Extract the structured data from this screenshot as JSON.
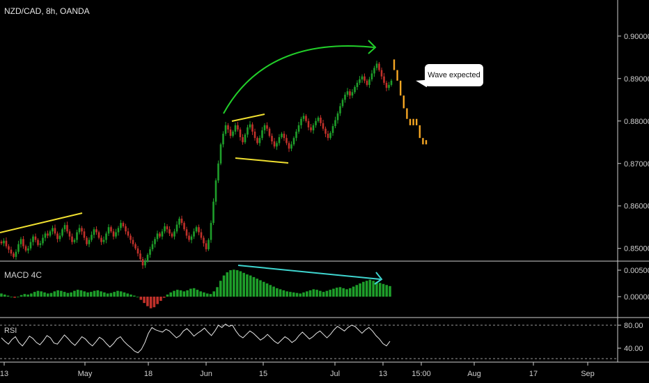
{
  "header": {
    "title": "NZD/CAD, 8h, OANDA"
  },
  "annotations": {
    "callout_text": "Wave expected"
  },
  "panes": {
    "macd_label": "MACD 4C",
    "rsi_label": "RSI"
  },
  "colors": {
    "up": "#1e9e2a",
    "down": "#c0312a",
    "projection": "#f5a623",
    "trend_yellow": "#f0e030",
    "arc_green": "#22d02a",
    "divergence": "#3fd6d0",
    "axis_text": "#cfcfcf"
  },
  "chart_data": [
    {
      "type": "candlestick",
      "series": [
        {
          "name": "price",
          "closes": [
            0.8512,
            0.8518,
            0.8505,
            0.8497,
            0.8488,
            0.848,
            0.8492,
            0.851,
            0.8522,
            0.8505,
            0.8495,
            0.85,
            0.8515,
            0.8528,
            0.852,
            0.8508,
            0.8512,
            0.8525,
            0.8535,
            0.853,
            0.854,
            0.8548,
            0.8535,
            0.8522,
            0.853,
            0.8545,
            0.8555,
            0.854,
            0.8528,
            0.8515,
            0.852,
            0.8538,
            0.8548,
            0.854,
            0.8525,
            0.851,
            0.852,
            0.8532,
            0.8545,
            0.8538,
            0.8525,
            0.8515,
            0.852,
            0.8535,
            0.855,
            0.854,
            0.8528,
            0.8538,
            0.8548,
            0.856,
            0.8552,
            0.854,
            0.853,
            0.852,
            0.851,
            0.85,
            0.8488,
            0.8475,
            0.846,
            0.847,
            0.8485,
            0.8498,
            0.851,
            0.8522,
            0.8535,
            0.8528,
            0.854,
            0.8552,
            0.8545,
            0.8535,
            0.8528,
            0.854,
            0.8556,
            0.857,
            0.856,
            0.8545,
            0.853,
            0.852,
            0.8528,
            0.854,
            0.855,
            0.8538,
            0.8525,
            0.8512,
            0.8498,
            0.852,
            0.856,
            0.861,
            0.866,
            0.87,
            0.8745,
            0.877,
            0.879,
            0.878,
            0.8765,
            0.8775,
            0.879,
            0.878,
            0.8762,
            0.875,
            0.8768,
            0.8785,
            0.8792,
            0.8775,
            0.876,
            0.8748,
            0.876,
            0.8778,
            0.879,
            0.8782,
            0.8765,
            0.8752,
            0.874,
            0.8748,
            0.8762,
            0.877,
            0.876,
            0.8748,
            0.8735,
            0.8745,
            0.876,
            0.8775,
            0.879,
            0.8805,
            0.8812,
            0.88,
            0.8785,
            0.8778,
            0.879,
            0.88,
            0.8808,
            0.8795,
            0.8782,
            0.877,
            0.876,
            0.8772,
            0.8788,
            0.8802,
            0.8818,
            0.8835,
            0.885,
            0.8862,
            0.887,
            0.886,
            0.8868,
            0.888,
            0.889,
            0.8898,
            0.8905,
            0.8895,
            0.8885,
            0.8898,
            0.8912,
            0.8925,
            0.8935,
            0.892,
            0.8905,
            0.889,
            0.8878,
            0.8885,
            0.8895
          ]
        }
      ],
      "projection": [
        0.892,
        0.8895,
        0.886,
        0.883,
        0.8805,
        0.879,
        0.8805,
        0.879,
        0.876,
        0.8745,
        0.8755
      ],
      "ylim": [
        0.847,
        0.9085
      ],
      "y_ticks": [
        "0.90000",
        "0.89000",
        "0.88000",
        "0.87000",
        "0.86000",
        "0.85000"
      ],
      "x_ticks": [
        "13",
        "May",
        "18",
        "Jun",
        "15",
        "Jul",
        "13",
        "15:00",
        "Aug",
        "17",
        "Sep"
      ]
    },
    {
      "type": "bar",
      "series": [
        {
          "name": "MACD 4C",
          "values": [
            0.0006,
            0.0004,
            0.0002,
            0.0,
            -0.0002,
            0.0,
            0.0003,
            0.0005,
            0.0004,
            0.0006,
            0.0009,
            0.0011,
            0.001,
            0.0008,
            0.0006,
            0.0007,
            0.001,
            0.0012,
            0.0011,
            0.0009,
            0.0007,
            0.0008,
            0.0011,
            0.0013,
            0.0012,
            0.001,
            0.0008,
            0.0009,
            0.0011,
            0.0012,
            0.001,
            0.0008,
            0.0006,
            0.0007,
            0.0009,
            0.0011,
            0.001,
            0.0008,
            0.0006,
            0.0004,
            0.0002,
            0.0,
            -0.0006,
            -0.0012,
            -0.0018,
            -0.0022,
            -0.002,
            -0.0014,
            -0.0008,
            -0.0002,
            0.0004,
            0.0008,
            0.0011,
            0.0013,
            0.0012,
            0.001,
            0.0012,
            0.0015,
            0.0016,
            0.0013,
            0.001,
            0.0008,
            0.0006,
            0.0005,
            0.001,
            0.0018,
            0.003,
            0.004,
            0.0046,
            0.005,
            0.0051,
            0.005,
            0.0048,
            0.0045,
            0.0042,
            0.004,
            0.0037,
            0.0034,
            0.0031,
            0.0028,
            0.0025,
            0.0022,
            0.0019,
            0.0016,
            0.0014,
            0.0012,
            0.001,
            0.0009,
            0.0008,
            0.0007,
            0.0006,
            0.0008,
            0.001,
            0.0012,
            0.0014,
            0.0013,
            0.0011,
            0.0009,
            0.0011,
            0.0013,
            0.0015,
            0.0017,
            0.0018,
            0.0016,
            0.0014,
            0.0016,
            0.0019,
            0.0022,
            0.0025,
            0.0028,
            0.003,
            0.0032,
            0.003,
            0.0028,
            0.0026,
            0.0024,
            0.0022,
            0.002
          ]
        }
      ],
      "y_ticks": [
        "0.00500",
        "0.00000"
      ]
    },
    {
      "type": "line",
      "series": [
        {
          "name": "RSI",
          "values": [
            58,
            52,
            47,
            55,
            60,
            50,
            44,
            52,
            61,
            57,
            50,
            46,
            53,
            62,
            58,
            49,
            47,
            55,
            63,
            57,
            50,
            45,
            52,
            60,
            56,
            49,
            44,
            51,
            59,
            55,
            48,
            42,
            48,
            56,
            60,
            52,
            46,
            41,
            35,
            32,
            38,
            50,
            66,
            76,
            72,
            70,
            68,
            73,
            70,
            64,
            58,
            62,
            70,
            74,
            68,
            61,
            66,
            70,
            75,
            68,
            62,
            70,
            80,
            76,
            82,
            78,
            80,
            70,
            62,
            58,
            64,
            70,
            66,
            60,
            54,
            58,
            64,
            58,
            52,
            48,
            54,
            60,
            56,
            50,
            54,
            62,
            68,
            62,
            56,
            60,
            66,
            70,
            64,
            58,
            64,
            72,
            78,
            74,
            70,
            76,
            80,
            78,
            72,
            66,
            72,
            76,
            70,
            62,
            56,
            48,
            44,
            52
          ]
        }
      ],
      "y_ticks": [
        "80.00",
        "40.00"
      ]
    }
  ]
}
